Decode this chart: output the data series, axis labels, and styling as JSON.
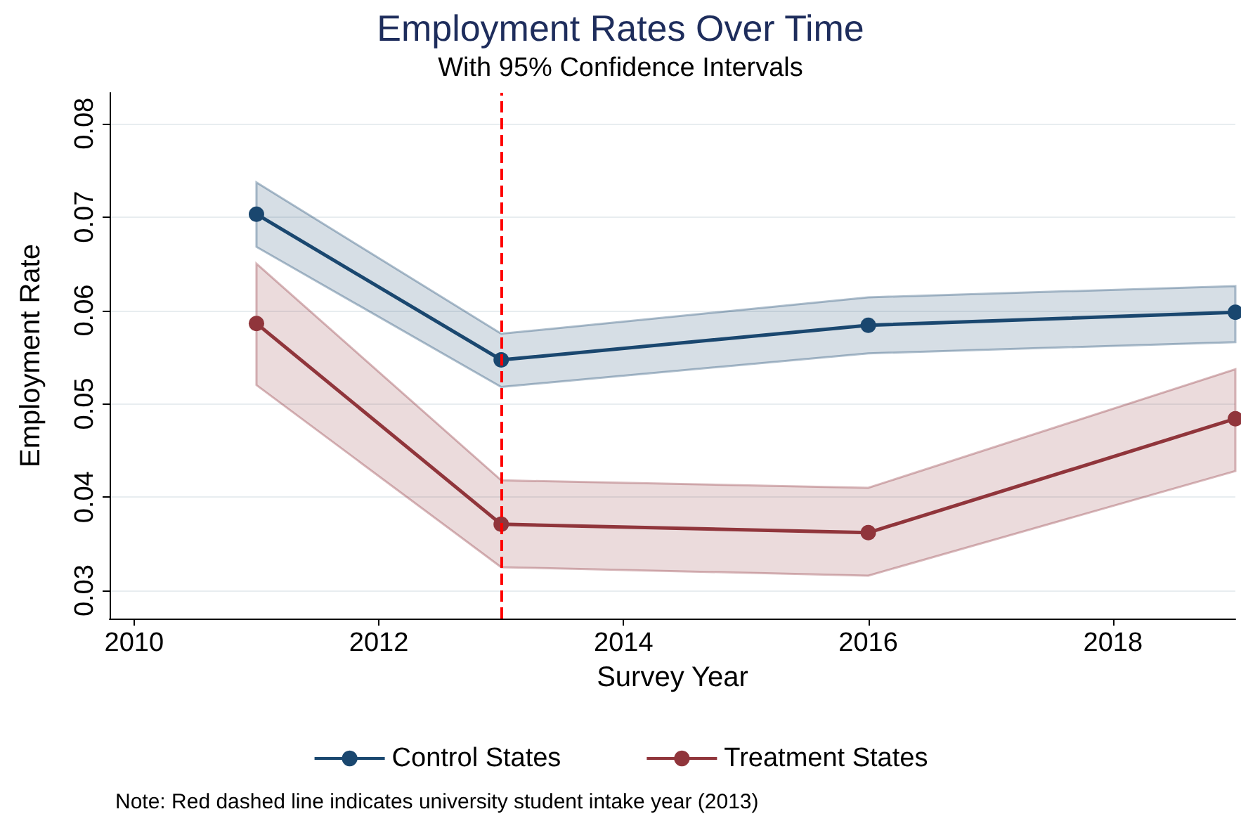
{
  "chart_data": {
    "type": "line",
    "title": "Employment Rates Over Time",
    "subtitle": "With 95% Confidence Intervals",
    "xlabel": "Survey Year",
    "ylabel": "Employment Rate",
    "x": [
      2011,
      2013,
      2016,
      2019
    ],
    "series": [
      {
        "name": "Control States",
        "color": "#1a476f",
        "values": [
          0.0703,
          0.0547,
          0.0584,
          0.0598
        ],
        "lower": [
          0.0668,
          0.0518,
          0.0554,
          0.0566
        ],
        "upper": [
          0.0737,
          0.0575,
          0.0614,
          0.0626
        ]
      },
      {
        "name": "Treatment States",
        "color": "#90353b",
        "values": [
          0.0586,
          0.0371,
          0.0362,
          0.0484
        ],
        "lower": [
          0.052,
          0.0325,
          0.0316,
          0.0428
        ],
        "upper": [
          0.065,
          0.0418,
          0.041,
          0.0537
        ]
      }
    ],
    "xlim": [
      2009.8,
      2019
    ],
    "xticks": [
      2010,
      2012,
      2014,
      2016,
      2018
    ],
    "ylim": [
      0.027,
      0.0833
    ],
    "yticks": [
      0.03,
      0.04,
      0.05,
      0.06,
      0.07,
      0.08
    ],
    "ref_lines": [
      {
        "axis": "x",
        "value": 2013,
        "color": "#ff0000",
        "line_style": "dashed"
      }
    ],
    "annotations": [
      "Note: Red dashed line indicates university student intake year (2013)"
    ],
    "grid": "y",
    "legend": "bottom",
    "marker": "circle",
    "line_style": "solid"
  }
}
